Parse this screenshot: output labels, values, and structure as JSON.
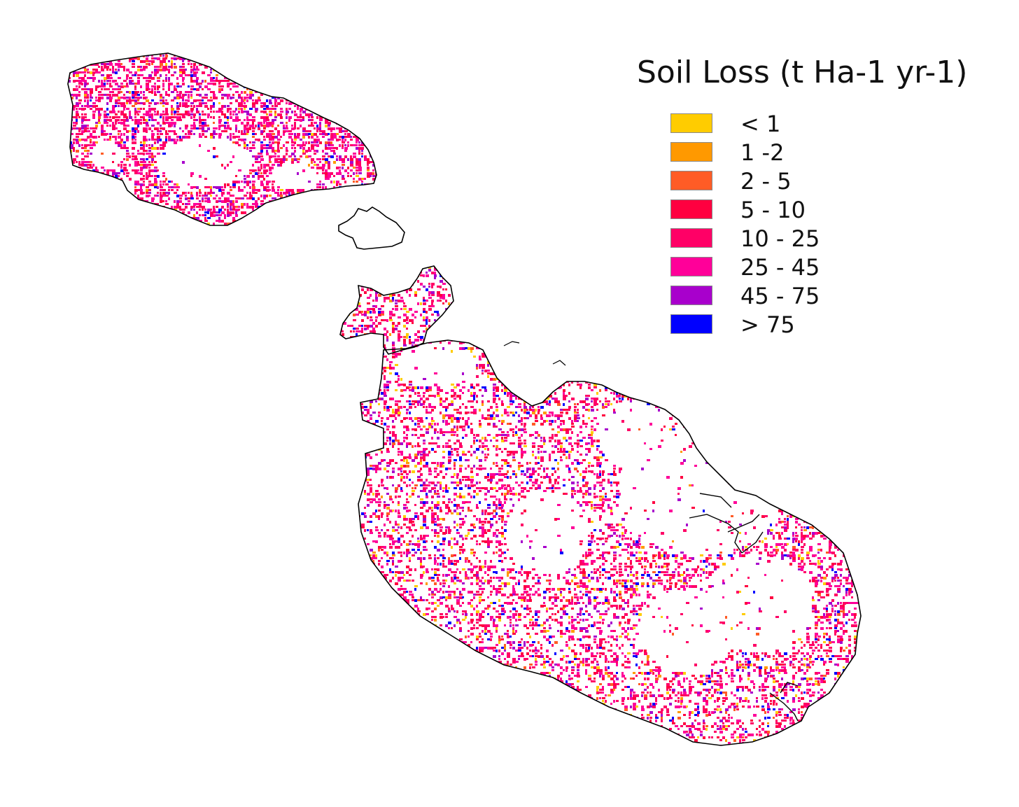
{
  "legend": {
    "title": "Soil Loss (t Ha-1 yr-1)",
    "classes": [
      {
        "label": "< 1",
        "color": "#ffcc00"
      },
      {
        "label": "1 -2",
        "color": "#ff9900"
      },
      {
        "label": "2 - 5",
        "color": "#ff5c26"
      },
      {
        "label": "5 - 10",
        "color": "#ff0040"
      },
      {
        "label": "10 - 25",
        "color": "#ff0066"
      },
      {
        "label": "25 - 45",
        "color": "#ff0099"
      },
      {
        "label": "45 - 75",
        "color": "#a800cc"
      },
      {
        "label": "> 75",
        "color": "#0000ff"
      }
    ]
  },
  "map": {
    "islands": [
      "gozo",
      "comino",
      "malta"
    ],
    "outline_color": "#000000",
    "background": "#ffffff"
  }
}
